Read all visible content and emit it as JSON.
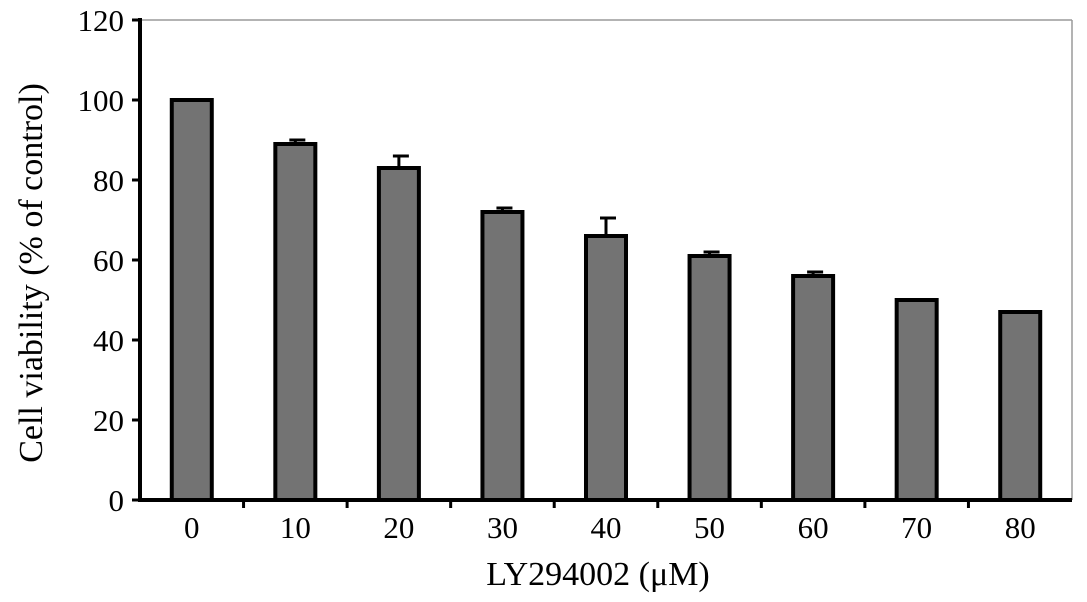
{
  "chart_data": {
    "type": "bar",
    "title": "",
    "xlabel": "LY294002 (μM)",
    "ylabel": "Cell viability (% of control)",
    "categories": [
      "0",
      "10",
      "20",
      "30",
      "40",
      "50",
      "60",
      "70",
      "80"
    ],
    "values": [
      100,
      89,
      83,
      72,
      66,
      61,
      56,
      50,
      47
    ],
    "errors": [
      0,
      1,
      3,
      1,
      4.5,
      1,
      1,
      0,
      0
    ],
    "ylim": [
      0,
      120
    ],
    "yticks": [
      "0",
      "20",
      "40",
      "60",
      "80",
      "100",
      "120"
    ],
    "grid": false,
    "bar_color": "#737373",
    "bar_edge_color": "#000000"
  }
}
